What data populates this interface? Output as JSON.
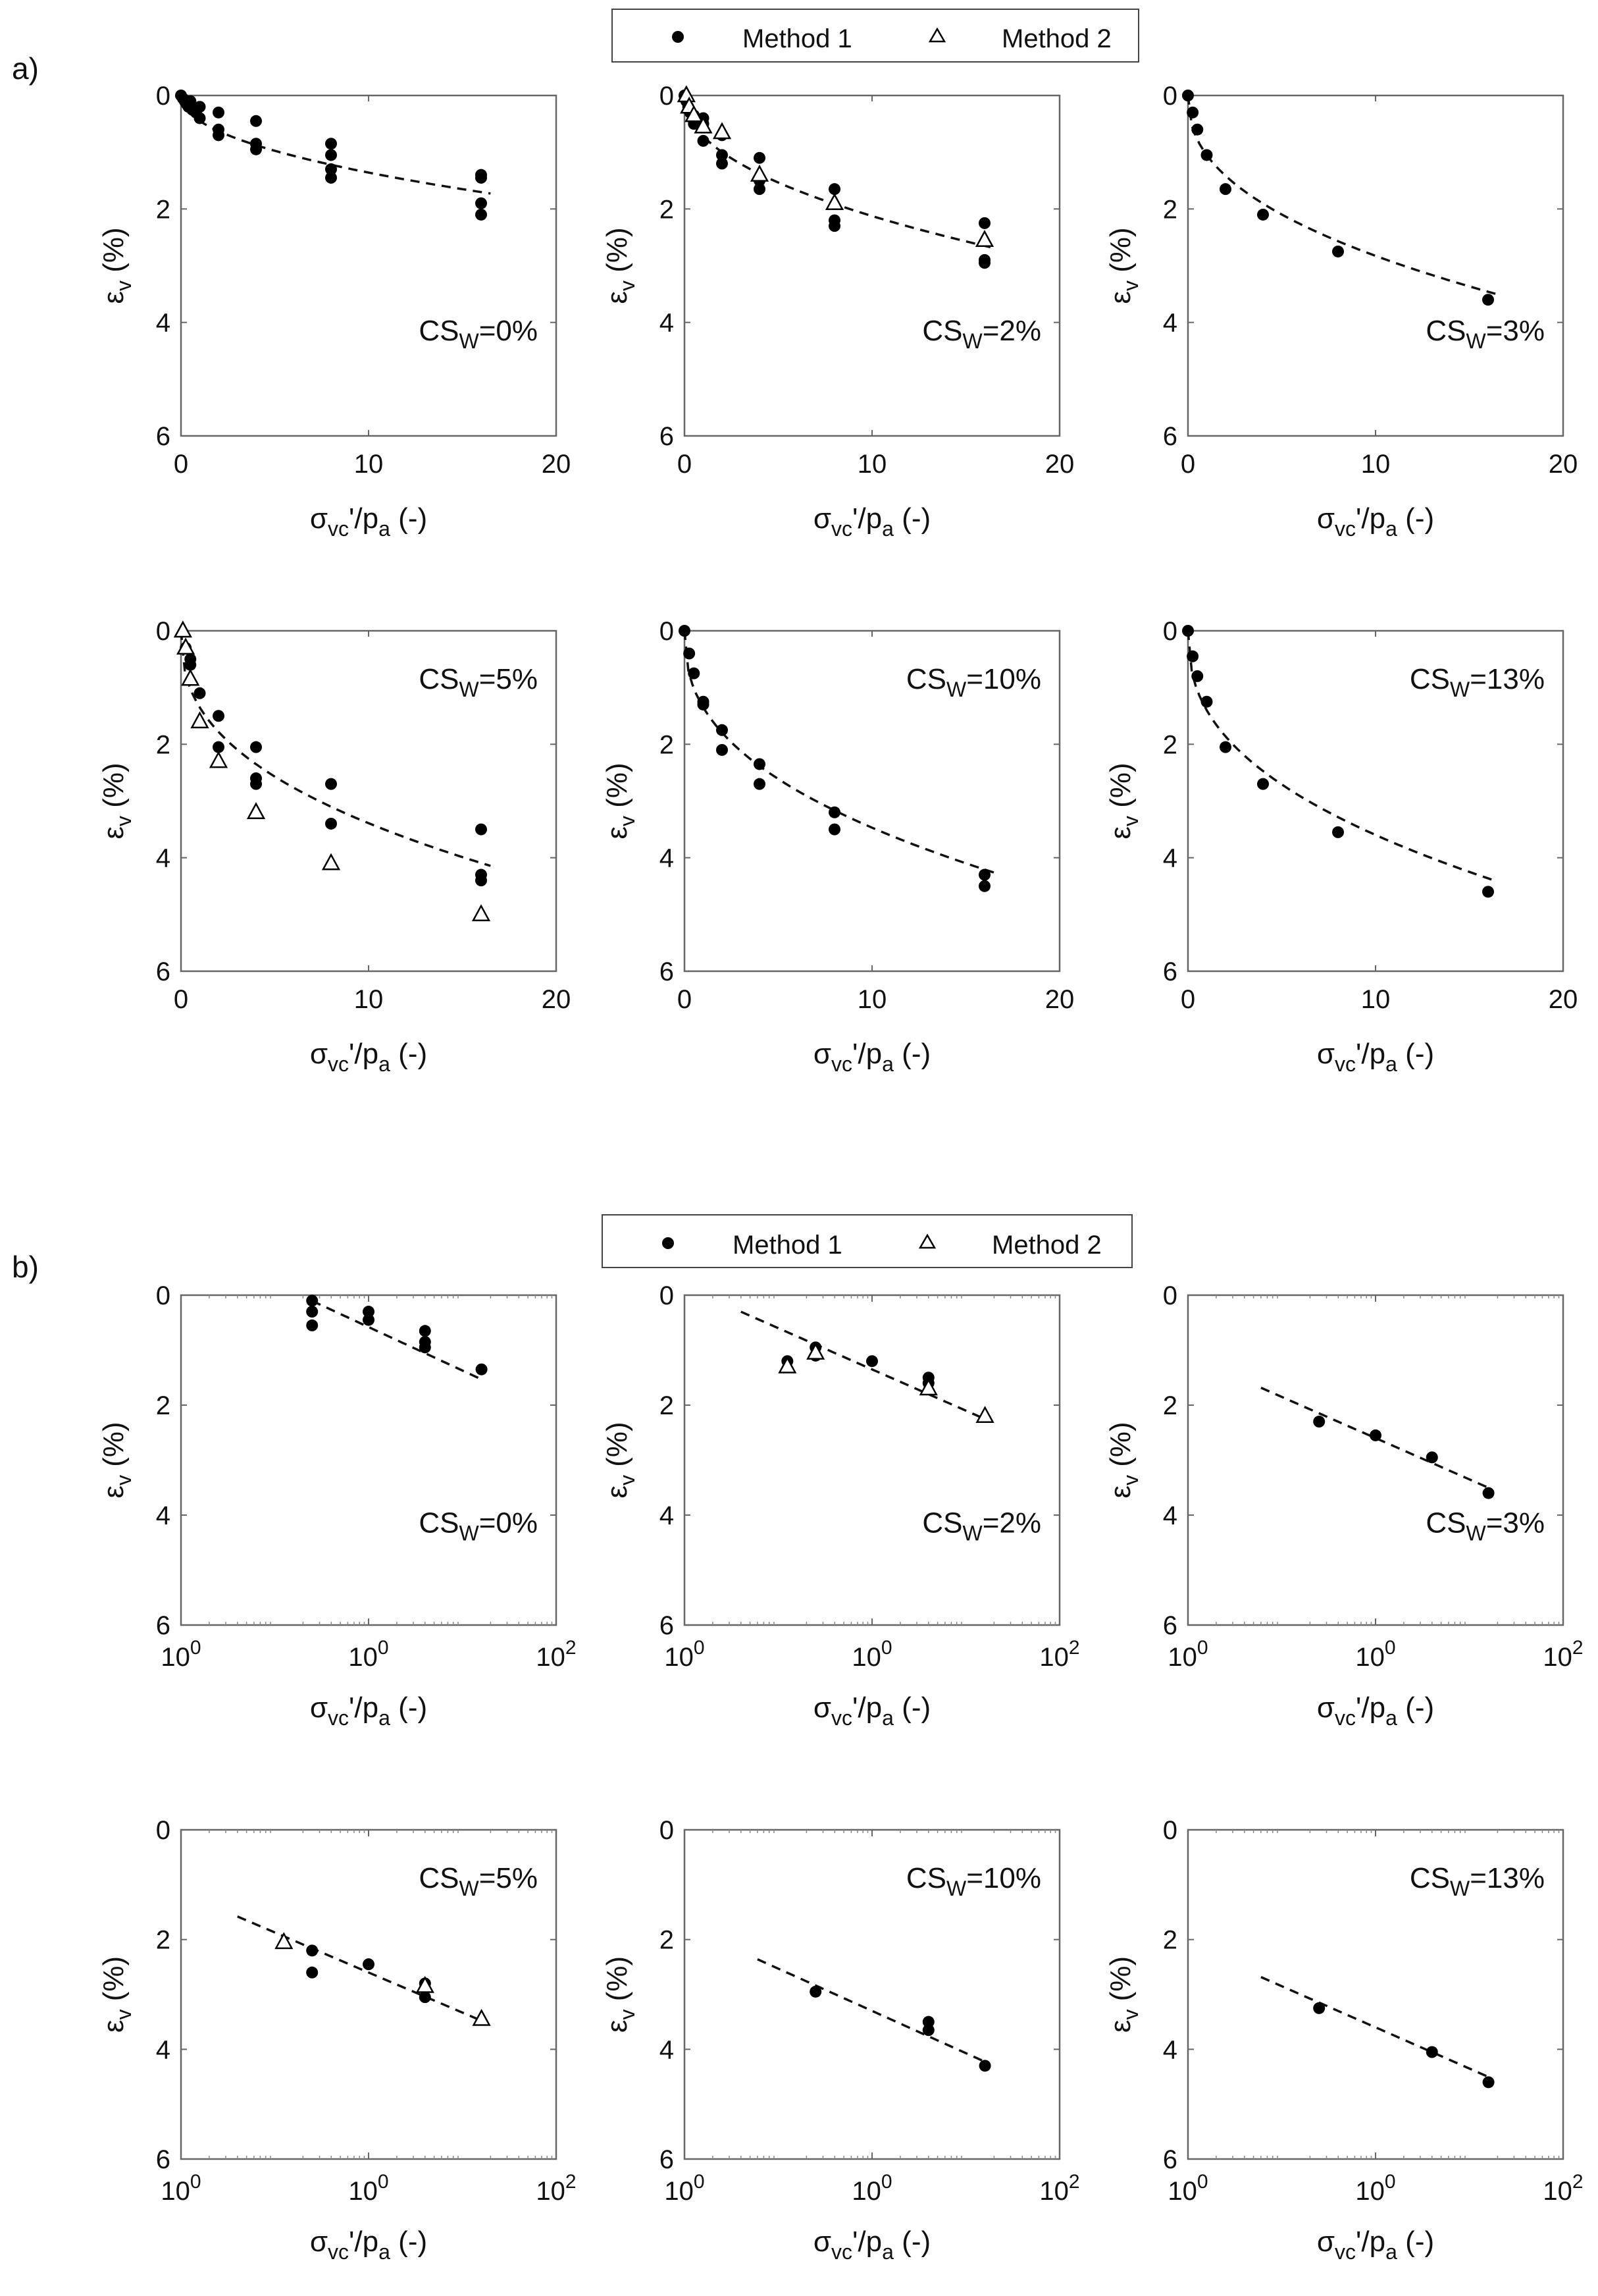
{
  "panel_labels": {
    "a": "a)",
    "b": "b)"
  },
  "legend": {
    "method1": "Method 1",
    "method2": "Method 2"
  },
  "axes": {
    "ylabel_main": "ε",
    "ylabel_sub": "v",
    "ylabel_tail": " (%)",
    "xlabel_main": "σ",
    "xlabel_sub": "vc",
    "xlabel_mid": "'/p",
    "xlabel_sub2": "a",
    "xlabel_tail": " (-)"
  },
  "chart_data": [
    {
      "id": "a1",
      "type": "scatter",
      "scale": "linear",
      "title": "CS_W=0%",
      "label_main": "CS",
      "label_sub": "W",
      "label_tail": "=0%",
      "xlim": [
        0,
        20
      ],
      "ylim": [
        0,
        6
      ],
      "xticks": [
        "0",
        "10",
        "20"
      ],
      "yticks": [
        "0",
        "2",
        "4",
        "6"
      ],
      "m1": [
        [
          0,
          0
        ],
        [
          0.1,
          0.05
        ],
        [
          0.2,
          0.1
        ],
        [
          0.3,
          0.15
        ],
        [
          0.4,
          0.2
        ],
        [
          0.5,
          0.1
        ],
        [
          0.6,
          0.25
        ],
        [
          0.8,
          0.3
        ],
        [
          1,
          0.4
        ],
        [
          1,
          0.2
        ],
        [
          2,
          0.3
        ],
        [
          2,
          0.6
        ],
        [
          2,
          0.7
        ],
        [
          4,
          0.45
        ],
        [
          4,
          0.85
        ],
        [
          4,
          0.95
        ],
        [
          8,
          0.85
        ],
        [
          8,
          1.05
        ],
        [
          8,
          1.3
        ],
        [
          8,
          1.45
        ],
        [
          16,
          1.4
        ],
        [
          16,
          1.45
        ],
        [
          16,
          1.9
        ],
        [
          16,
          2.1
        ]
      ],
      "m2": [],
      "fit": {
        "kind": "pow",
        "a": 0.45,
        "b": 0.48,
        "x0": 0,
        "x1": 16.5
      }
    },
    {
      "id": "a2",
      "type": "scatter",
      "scale": "linear",
      "title": "CS_W=2%",
      "label_main": "CS",
      "label_sub": "W",
      "label_tail": "=2%",
      "xlim": [
        0,
        20
      ],
      "ylim": [
        0,
        6
      ],
      "xticks": [
        "0",
        "10",
        "20"
      ],
      "yticks": [
        "0",
        "2",
        "4",
        "6"
      ],
      "m1": [
        [
          0,
          0
        ],
        [
          0.1,
          0.1
        ],
        [
          0.2,
          0.2
        ],
        [
          0.3,
          0.3
        ],
        [
          0.5,
          0.35
        ],
        [
          0.5,
          0.5
        ],
        [
          1,
          0.4
        ],
        [
          1,
          0.5
        ],
        [
          1,
          0.8
        ],
        [
          2,
          0.7
        ],
        [
          2,
          1.05
        ],
        [
          2,
          1.2
        ],
        [
          4,
          1.1
        ],
        [
          4,
          1.5
        ],
        [
          4,
          1.65
        ],
        [
          8,
          1.65
        ],
        [
          8,
          2.2
        ],
        [
          8,
          2.3
        ],
        [
          16,
          2.25
        ],
        [
          16,
          2.9
        ],
        [
          16,
          2.95
        ]
      ],
      "m2": [
        [
          0.1,
          0
        ],
        [
          0.25,
          0.2
        ],
        [
          0.5,
          0.35
        ],
        [
          1,
          0.55
        ],
        [
          2,
          0.65
        ],
        [
          4,
          1.4
        ],
        [
          8,
          1.9
        ],
        [
          16,
          2.55
        ]
      ],
      "fit": {
        "kind": "pow",
        "a": 0.72,
        "b": 0.47,
        "x0": 0,
        "x1": 16.5
      }
    },
    {
      "id": "a3",
      "type": "scatter",
      "scale": "linear",
      "title": "CS_W=3%",
      "label_main": "CS",
      "label_sub": "W",
      "label_tail": "=3%",
      "xlim": [
        0,
        20
      ],
      "ylim": [
        0,
        6
      ],
      "xticks": [
        "0",
        "10",
        "20"
      ],
      "yticks": [
        "0",
        "2",
        "4",
        "6"
      ],
      "m1": [
        [
          0,
          0
        ],
        [
          0.25,
          0.3
        ],
        [
          0.5,
          0.6
        ],
        [
          1,
          1.05
        ],
        [
          2,
          1.65
        ],
        [
          4,
          2.1
        ],
        [
          8,
          2.75
        ],
        [
          16,
          3.6
        ]
      ],
      "m2": [],
      "fit": {
        "kind": "pow",
        "a": 1.05,
        "b": 0.43,
        "x0": 0,
        "x1": 16.5
      }
    },
    {
      "id": "a4",
      "type": "scatter",
      "scale": "linear",
      "title": "CS_W=5%",
      "label_main": "CS",
      "label_sub": "W",
      "label_tail": "=5%",
      "xlim": [
        0,
        20
      ],
      "ylim": [
        0,
        6
      ],
      "xticks": [
        "0",
        "10",
        "20"
      ],
      "yticks": [
        "0",
        "2",
        "4",
        "6"
      ],
      "m1": [
        [
          0.25,
          0.3
        ],
        [
          0.5,
          0.5
        ],
        [
          0.5,
          0.6
        ],
        [
          1,
          1.1
        ],
        [
          2,
          1.5
        ],
        [
          2,
          2.05
        ],
        [
          4,
          2.05
        ],
        [
          4,
          2.6
        ],
        [
          4,
          2.7
        ],
        [
          8,
          2.7
        ],
        [
          8,
          3.4
        ],
        [
          16,
          3.5
        ],
        [
          16,
          4.3
        ],
        [
          16,
          4.4
        ]
      ],
      "m2": [
        [
          0.1,
          0
        ],
        [
          0.25,
          0.3
        ],
        [
          0.5,
          0.85
        ],
        [
          1,
          1.6
        ],
        [
          2,
          2.3
        ],
        [
          4,
          3.2
        ],
        [
          8,
          4.1
        ],
        [
          16,
          5.0
        ]
      ],
      "fit": {
        "kind": "pow",
        "a": 1.35,
        "b": 0.4,
        "x0": 0,
        "x1": 16.5
      }
    },
    {
      "id": "a5",
      "type": "scatter",
      "scale": "linear",
      "title": "CS_W=10%",
      "label_main": "CS",
      "label_sub": "W",
      "label_tail": "=10%",
      "xlim": [
        0,
        20
      ],
      "ylim": [
        0,
        6
      ],
      "xticks": [
        "0",
        "10",
        "20"
      ],
      "yticks": [
        "0",
        "2",
        "4",
        "6"
      ],
      "m1": [
        [
          0,
          0
        ],
        [
          0.25,
          0.4
        ],
        [
          0.5,
          0.75
        ],
        [
          1,
          1.25
        ],
        [
          1,
          1.3
        ],
        [
          2,
          1.75
        ],
        [
          2,
          2.1
        ],
        [
          4,
          2.35
        ],
        [
          4,
          2.7
        ],
        [
          8,
          3.2
        ],
        [
          8,
          3.5
        ],
        [
          16,
          4.3
        ],
        [
          16,
          4.5
        ]
      ],
      "m2": [],
      "fit": {
        "kind": "pow",
        "a": 1.35,
        "b": 0.41,
        "x0": 0,
        "x1": 16.5
      }
    },
    {
      "id": "a6",
      "type": "scatter",
      "scale": "linear",
      "title": "CS_W=13%",
      "label_main": "CS",
      "label_sub": "W",
      "label_tail": "=13%",
      "xlim": [
        0,
        20
      ],
      "ylim": [
        0,
        6
      ],
      "xticks": [
        "0",
        "10",
        "20"
      ],
      "yticks": [
        "0",
        "2",
        "4",
        "6"
      ],
      "m1": [
        [
          0,
          0
        ],
        [
          0.25,
          0.45
        ],
        [
          0.5,
          0.8
        ],
        [
          1,
          1.25
        ],
        [
          2,
          2.05
        ],
        [
          4,
          2.7
        ],
        [
          8,
          3.55
        ],
        [
          16,
          4.6
        ]
      ],
      "m2": [],
      "fit": {
        "kind": "pow",
        "a": 1.4,
        "b": 0.41,
        "x0": 0,
        "x1": 16.5
      }
    },
    {
      "id": "b1",
      "type": "scatter",
      "scale": "log",
      "title": "CS_W=0%",
      "label_main": "CS",
      "label_sub": "W",
      "label_tail": "=0%",
      "xlim": [
        0.01,
        100
      ],
      "ylim": [
        0,
        6
      ],
      "xticks": [
        "10",
        "0",
        "10",
        "0",
        "10",
        "2"
      ],
      "yticks": [
        "0",
        "2",
        "4",
        "6"
      ],
      "m1": [
        [
          0.25,
          0.1
        ],
        [
          0.25,
          0.3
        ],
        [
          0.25,
          0.55
        ],
        [
          1,
          0.3
        ],
        [
          1,
          0.45
        ],
        [
          4,
          0.65
        ],
        [
          4,
          0.85
        ],
        [
          4,
          0.95
        ],
        [
          16,
          1.35
        ]
      ],
      "m2": [],
      "fit": {
        "kind": "loglin",
        "a": 0.58,
        "b": 0.79,
        "x0": 0.25,
        "x1": 16
      }
    },
    {
      "id": "b2",
      "type": "scatter",
      "scale": "log",
      "title": "CS_W=2%",
      "label_main": "CS",
      "label_sub": "W",
      "label_tail": "=2%",
      "xlim": [
        0.01,
        100
      ],
      "ylim": [
        0,
        6
      ],
      "xticks": [
        "10",
        "0",
        "10",
        "0",
        "10",
        "2"
      ],
      "yticks": [
        "0",
        "2",
        "4",
        "6"
      ],
      "m1": [
        [
          0.125,
          1.2
        ],
        [
          0.25,
          0.95
        ],
        [
          0.25,
          1.1
        ],
        [
          1,
          1.2
        ],
        [
          4,
          1.5
        ],
        [
          4,
          1.6
        ]
      ],
      "m2": [
        [
          0.125,
          1.3
        ],
        [
          0.25,
          1.05
        ],
        [
          4,
          1.7
        ],
        [
          16,
          2.2
        ]
      ],
      "fit": {
        "kind": "loglin",
        "a": 1.35,
        "b": 0.75,
        "x0": 0.04,
        "x1": 16
      }
    },
    {
      "id": "b3",
      "type": "scatter",
      "scale": "log",
      "title": "CS_W=3%",
      "label_main": "CS",
      "label_sub": "W",
      "label_tail": "=3%",
      "xlim": [
        0.01,
        100
      ],
      "ylim": [
        0,
        6
      ],
      "xticks": [
        "10",
        "0",
        "10",
        "0",
        "10",
        "2"
      ],
      "yticks": [
        "0",
        "2",
        "4",
        "6"
      ],
      "m1": [
        [
          0.25,
          2.3
        ],
        [
          1,
          2.55
        ],
        [
          4,
          2.95
        ],
        [
          16,
          3.6
        ]
      ],
      "m2": [],
      "fit": {
        "kind": "loglin",
        "a": 2.6,
        "b": 0.75,
        "x0": 0.06,
        "x1": 16
      }
    },
    {
      "id": "b4",
      "type": "scatter",
      "scale": "log",
      "title": "CS_W=5%",
      "label_main": "CS",
      "label_sub": "W",
      "label_tail": "=5%",
      "xlim": [
        0.01,
        100
      ],
      "ylim": [
        0,
        6
      ],
      "xticks": [
        "10",
        "0",
        "10",
        "0",
        "10",
        "2"
      ],
      "yticks": [
        "0",
        "2",
        "4",
        "6"
      ],
      "m1": [
        [
          0.25,
          2.2
        ],
        [
          0.25,
          2.6
        ],
        [
          1,
          2.45
        ],
        [
          4,
          2.8
        ],
        [
          4,
          3.05
        ]
      ],
      "m2": [
        [
          0.125,
          2.05
        ],
        [
          4,
          2.85
        ],
        [
          16,
          3.45
        ]
      ],
      "fit": {
        "kind": "loglin",
        "a": 2.6,
        "b": 0.73,
        "x0": 0.04,
        "x1": 16
      }
    },
    {
      "id": "b5",
      "type": "scatter",
      "scale": "log",
      "title": "CS_W=10%",
      "label_main": "CS",
      "label_sub": "W",
      "label_tail": "=10%",
      "xlim": [
        0.01,
        100
      ],
      "ylim": [
        0,
        6
      ],
      "xticks": [
        "10",
        "0",
        "10",
        "0",
        "10",
        "2"
      ],
      "yticks": [
        "0",
        "2",
        "4",
        "6"
      ],
      "m1": [
        [
          0.25,
          2.95
        ],
        [
          4,
          3.5
        ],
        [
          4,
          3.65
        ],
        [
          16,
          4.3
        ]
      ],
      "m2": [],
      "fit": {
        "kind": "loglin",
        "a": 3.3,
        "b": 0.77,
        "x0": 0.06,
        "x1": 16
      }
    },
    {
      "id": "b6",
      "type": "scatter",
      "scale": "log",
      "title": "CS_W=13%",
      "label_main": "CS",
      "label_sub": "W",
      "label_tail": "=13%",
      "xlim": [
        0.01,
        100
      ],
      "ylim": [
        0,
        6
      ],
      "xticks": [
        "10",
        "0",
        "10",
        "0",
        "10",
        "2"
      ],
      "yticks": [
        "0",
        "2",
        "4",
        "6"
      ],
      "m1": [
        [
          0.25,
          3.25
        ],
        [
          4,
          4.05
        ],
        [
          16,
          4.6
        ]
      ],
      "m2": [],
      "fit": {
        "kind": "loglin",
        "a": 3.6,
        "b": 0.75,
        "x0": 0.06,
        "x1": 16
      }
    }
  ]
}
